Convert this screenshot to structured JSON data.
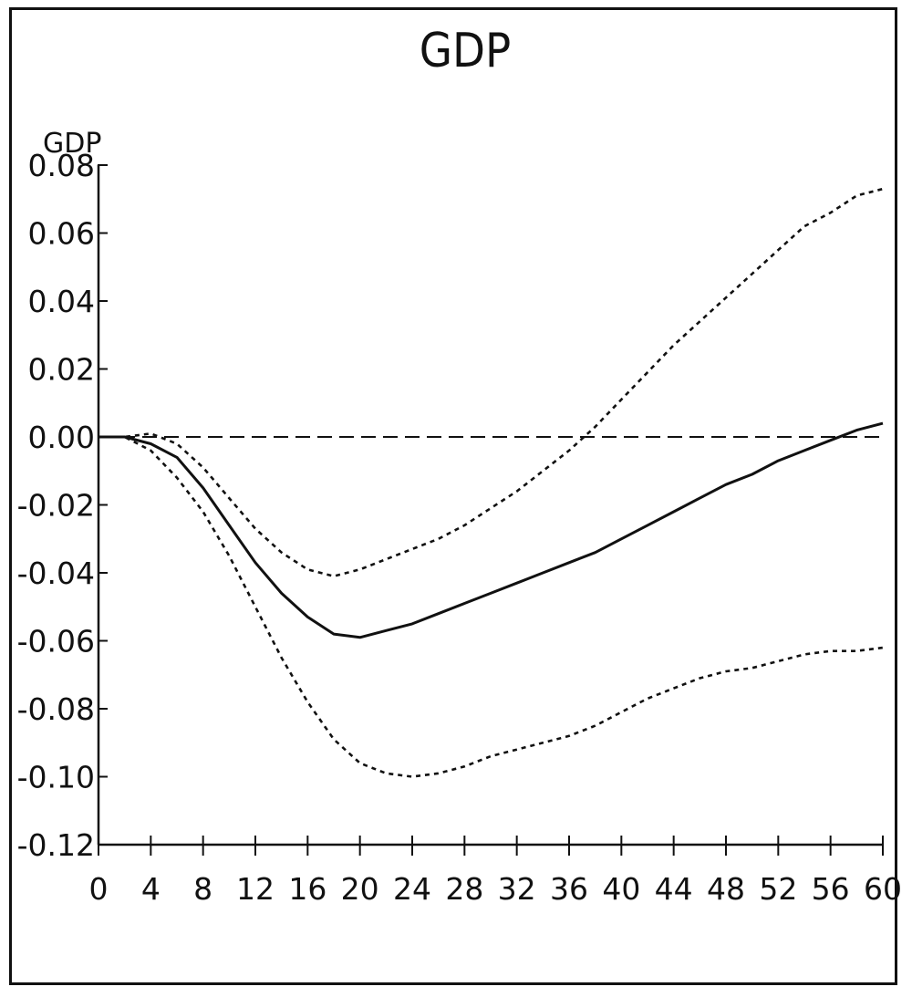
{
  "chart_data": {
    "type": "line",
    "title": "GDP",
    "ylabel": "GDP",
    "xlabel": "",
    "xlim": [
      0,
      60
    ],
    "ylim": [
      -0.12,
      0.08
    ],
    "x_ticks": [
      0,
      4,
      8,
      12,
      16,
      20,
      24,
      28,
      32,
      36,
      40,
      44,
      48,
      52,
      56,
      60
    ],
    "x_tick_labels": [
      "0",
      "4",
      "8",
      "12",
      "16",
      "20",
      "24",
      "28",
      "32",
      "36",
      "40",
      "44",
      "48",
      "52",
      "56",
      "60"
    ],
    "y_ticks": [
      0.08,
      0.06,
      0.04,
      0.02,
      0.0,
      -0.02,
      -0.04,
      -0.06,
      -0.08,
      -0.1,
      -0.12
    ],
    "y_tick_labels": [
      "0.08",
      "0.06",
      "0.04",
      "0.02",
      "0.00",
      "-0.02",
      "-0.04",
      "-0.06",
      "-0.08",
      "-0.10",
      "-0.12"
    ],
    "grid": false,
    "legend": "none",
    "zero_line": 0.0,
    "x": [
      0,
      2,
      4,
      6,
      8,
      10,
      12,
      14,
      16,
      18,
      20,
      22,
      24,
      26,
      28,
      30,
      32,
      34,
      36,
      38,
      40,
      42,
      44,
      46,
      48,
      50,
      52,
      54,
      56,
      58,
      60
    ],
    "series": [
      {
        "role": "estimate",
        "style": "solid",
        "values": [
          0.0,
          0.0,
          -0.002,
          -0.006,
          -0.015,
          -0.026,
          -0.037,
          -0.046,
          -0.053,
          -0.058,
          -0.059,
          -0.057,
          -0.055,
          -0.052,
          -0.049,
          -0.046,
          -0.043,
          -0.04,
          -0.037,
          -0.034,
          -0.03,
          -0.026,
          -0.022,
          -0.018,
          -0.014,
          -0.011,
          -0.007,
          -0.004,
          -0.001,
          0.002,
          0.004
        ]
      },
      {
        "role": "upper band",
        "style": "dotted",
        "values": [
          0.0,
          0.0,
          0.001,
          -0.002,
          -0.009,
          -0.018,
          -0.027,
          -0.034,
          -0.039,
          -0.041,
          -0.039,
          -0.036,
          -0.033,
          -0.03,
          -0.026,
          -0.021,
          -0.016,
          -0.01,
          -0.004,
          0.003,
          0.011,
          0.019,
          0.027,
          0.034,
          0.041,
          0.048,
          0.055,
          0.062,
          0.066,
          0.071,
          0.073
        ]
      },
      {
        "role": "lower band",
        "style": "dotted",
        "values": [
          0.0,
          0.0,
          -0.004,
          -0.012,
          -0.022,
          -0.035,
          -0.05,
          -0.065,
          -0.078,
          -0.089,
          -0.096,
          -0.099,
          -0.1,
          -0.099,
          -0.097,
          -0.094,
          -0.092,
          -0.09,
          -0.088,
          -0.085,
          -0.081,
          -0.077,
          -0.074,
          -0.071,
          -0.069,
          -0.068,
          -0.066,
          -0.064,
          -0.063,
          -0.063,
          -0.062
        ]
      }
    ],
    "colors": {
      "line": "#111111",
      "background": "#ffffff"
    }
  }
}
